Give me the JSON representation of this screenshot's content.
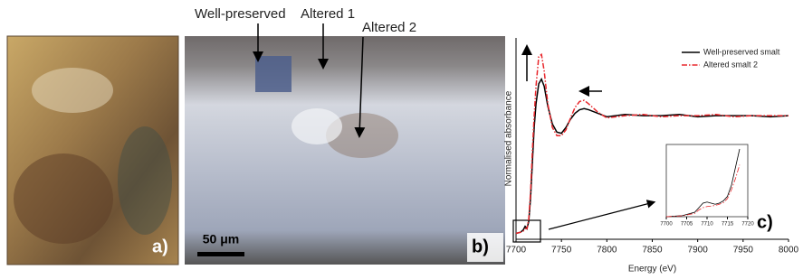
{
  "panels": {
    "a": {
      "label": "a)"
    },
    "b": {
      "label": "b)",
      "annotations": [
        "Well-preserved",
        "Altered 1",
        "Altered 2"
      ],
      "scale_bar": "50 μm"
    },
    "c": {
      "label": "c)"
    }
  },
  "chart_data": [
    {
      "type": "line",
      "xlabel": "Energy (eV)",
      "ylabel": "Normalised absorbance",
      "legend": "upper right",
      "xlim": [
        7700,
        8000
      ],
      "xticks": [
        7700,
        7750,
        7800,
        7850,
        7900,
        7950,
        8000
      ],
      "ylim": [
        -0.05,
        1.66
      ],
      "x": [
        7700,
        7705,
        7708,
        7710,
        7712,
        7714,
        7716,
        7718,
        7720,
        7722,
        7725,
        7728,
        7731,
        7735,
        7740,
        7745,
        7750,
        7755,
        7760,
        7765,
        7770,
        7775,
        7780,
        7790,
        7800,
        7820,
        7840,
        7860,
        7880,
        7900,
        7920,
        7940,
        7960,
        7980,
        8000
      ],
      "series": [
        {
          "name": "Well-preserved smalt",
          "color": "#000000",
          "linestyle": "solid",
          "values": [
            0,
            0.01,
            0.03,
            0.06,
            0.04,
            0.1,
            0.3,
            0.6,
            0.9,
            1.1,
            1.27,
            1.31,
            1.25,
            1.08,
            0.93,
            0.86,
            0.85,
            0.9,
            0.97,
            1.02,
            1.05,
            1.06,
            1.05,
            1.02,
            0.99,
            1.01,
            1.0,
            1.0,
            1.01,
            0.99,
            1.0,
            1.0,
            1.0,
            0.99,
            1.0
          ]
        },
        {
          "name": "Altered smalt 2",
          "color": "#e8262b",
          "linestyle": "dashdot",
          "values": [
            0,
            0.01,
            0.02,
            0.04,
            0.04,
            0.12,
            0.35,
            0.7,
            1.0,
            1.25,
            1.5,
            1.52,
            1.38,
            1.1,
            0.9,
            0.83,
            0.83,
            0.88,
            0.98,
            1.07,
            1.12,
            1.13,
            1.1,
            1.03,
            0.98,
            1.0,
            1.01,
            0.99,
            1.0,
            1.0,
            1.01,
            0.99,
            1.0,
            1.0,
            1.0
          ]
        }
      ]
    },
    {
      "type": "line",
      "xlim": [
        7700,
        7720
      ],
      "xticks": [
        7700,
        7705,
        7710,
        7715,
        7720
      ],
      "ylim": [
        0,
        0.32
      ],
      "x": [
        7700,
        7704,
        7707,
        7708,
        7709,
        7710,
        7711,
        7712,
        7713,
        7714,
        7715,
        7716,
        7717,
        7718
      ],
      "series": [
        {
          "color": "#000000",
          "linestyle": "solid",
          "values": [
            0,
            0.005,
            0.02,
            0.04,
            0.06,
            0.065,
            0.06,
            0.055,
            0.06,
            0.07,
            0.09,
            0.14,
            0.22,
            0.3
          ]
        },
        {
          "color": "#e8262b",
          "linestyle": "dashdot",
          "values": [
            0,
            0.004,
            0.015,
            0.03,
            0.04,
            0.045,
            0.047,
            0.05,
            0.055,
            0.062,
            0.08,
            0.12,
            0.17,
            0.23
          ]
        }
      ]
    }
  ]
}
